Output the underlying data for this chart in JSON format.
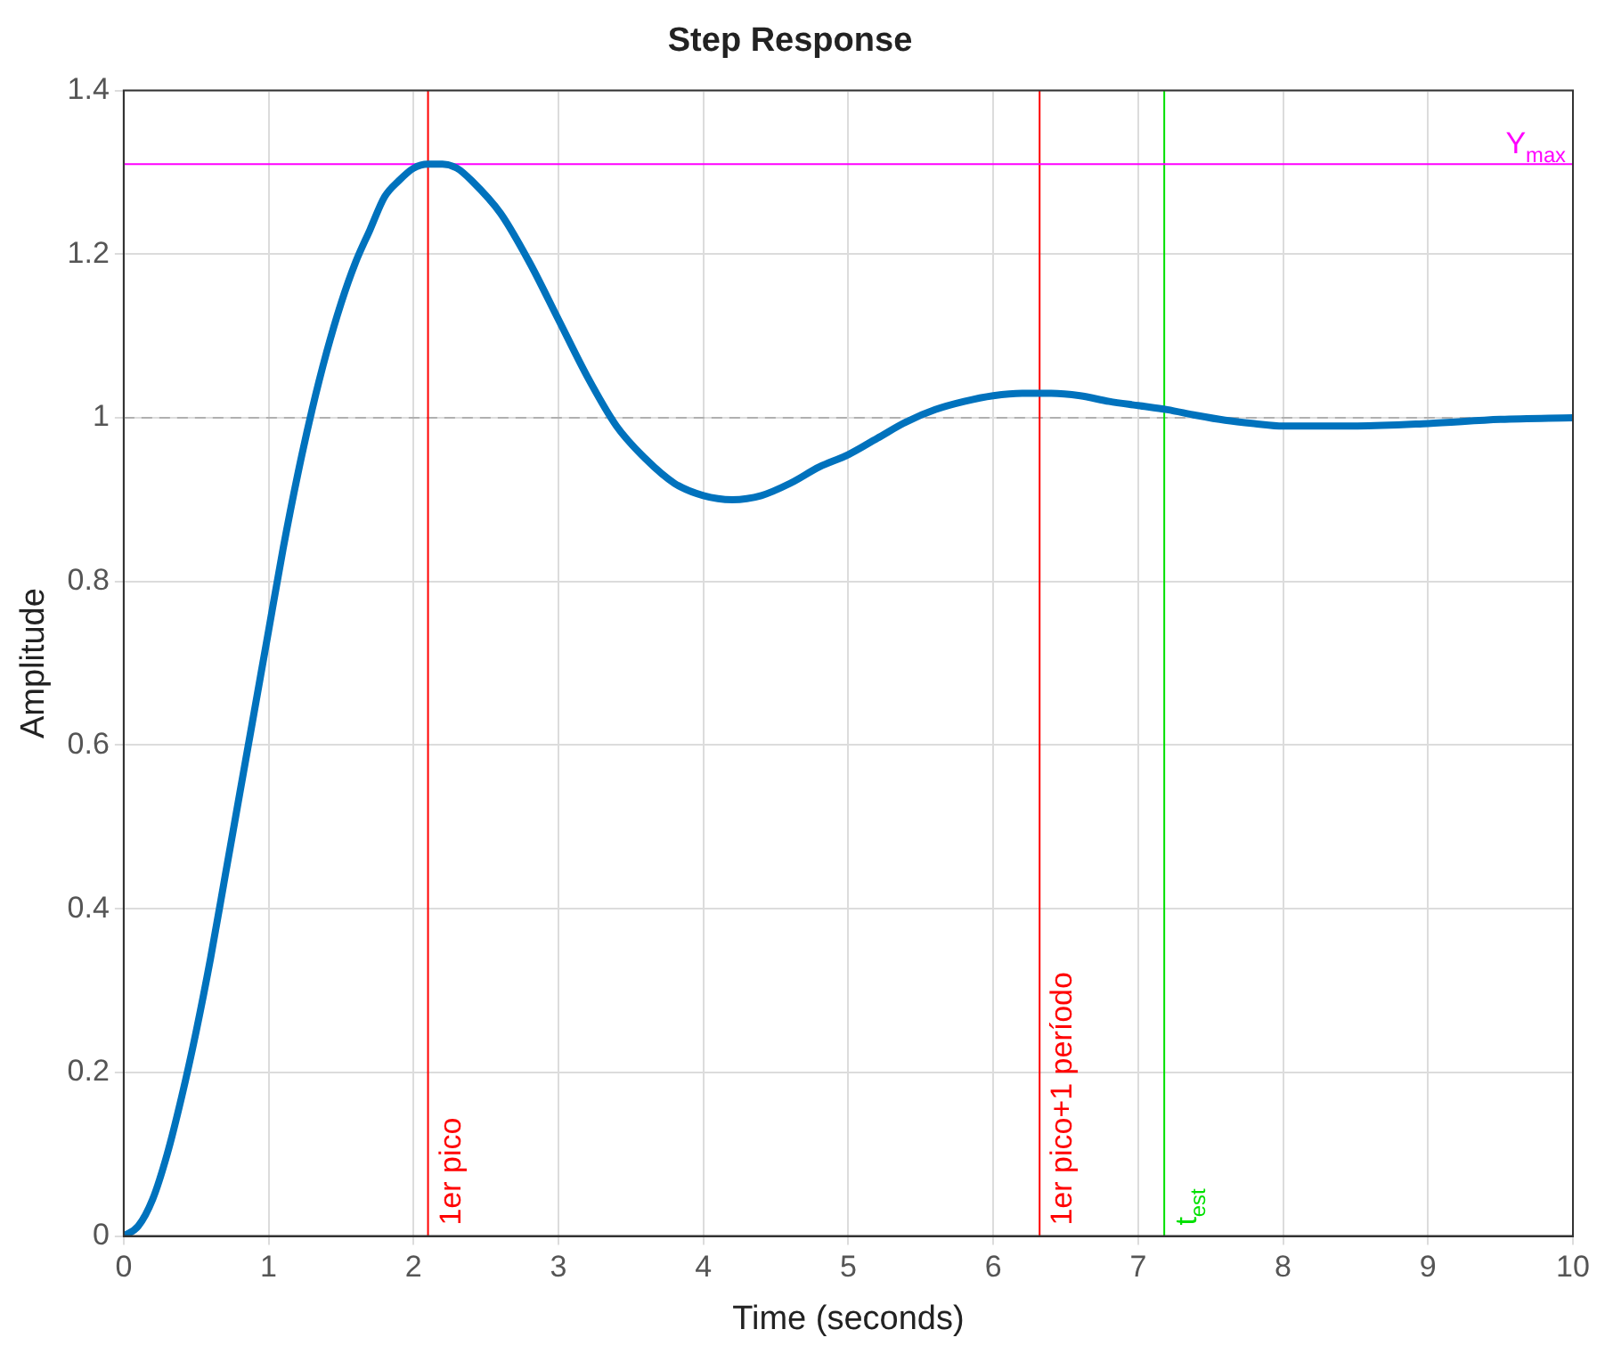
{
  "chart_data": {
    "type": "line",
    "title": "Step Response",
    "xlabel": "Time (seconds)",
    "ylabel": "Amplitude",
    "x": [
      0,
      0.1,
      0.2,
      0.3,
      0.4,
      0.5,
      0.6,
      0.7,
      0.8,
      0.9,
      1.0,
      1.1,
      1.2,
      1.3,
      1.4,
      1.5,
      1.6,
      1.7,
      1.8,
      1.9,
      2.0,
      2.1,
      2.2,
      2.3,
      2.4,
      2.6,
      2.8,
      3.0,
      3.2,
      3.4,
      3.6,
      3.8,
      4.0,
      4.2,
      4.4,
      4.6,
      4.8,
      5.0,
      5.2,
      5.4,
      5.6,
      5.8,
      6.0,
      6.2,
      6.4,
      6.6,
      6.8,
      7.0,
      7.2,
      7.4,
      7.6,
      7.8,
      8.0,
      8.5,
      9.0,
      9.5,
      10
    ],
    "series": [
      {
        "color": "#0072bd",
        "values": [
          0,
          0.012,
          0.045,
          0.1,
          0.17,
          0.25,
          0.34,
          0.44,
          0.54,
          0.64,
          0.74,
          0.84,
          0.93,
          1.01,
          1.08,
          1.14,
          1.19,
          1.23,
          1.27,
          1.29,
          1.305,
          1.31,
          1.31,
          1.305,
          1.29,
          1.25,
          1.19,
          1.12,
          1.05,
          0.99,
          0.95,
          0.92,
          0.905,
          0.9,
          0.905,
          0.92,
          0.94,
          0.955,
          0.975,
          0.995,
          1.01,
          1.02,
          1.027,
          1.03,
          1.03,
          1.027,
          1.02,
          1.015,
          1.01,
          1.003,
          0.997,
          0.993,
          0.99,
          0.99,
          0.993,
          0.998,
          1.0
        ]
      }
    ],
    "xlim": [
      0,
      10
    ],
    "xticks": [
      0,
      1,
      2,
      3,
      4,
      5,
      6,
      7,
      8,
      9,
      10
    ],
    "ylim": [
      0,
      1.4
    ],
    "yticks": [
      0,
      0.2,
      0.4,
      0.6,
      0.8,
      1,
      1.2,
      1.4
    ],
    "grid": true,
    "legend": false,
    "marker": "none",
    "line_style": "solid",
    "ref_lines": [
      {
        "axis": "y",
        "value": 1,
        "color": "#b0b0b0",
        "line_style": "dashed"
      },
      {
        "axis": "x",
        "value": 2.1,
        "label": "1er pico",
        "color": "#ff0000",
        "line_style": "solid"
      },
      {
        "axis": "x",
        "value": 6.32,
        "label": "1er pico+1 período",
        "color": "#ff0000",
        "line_style": "solid"
      },
      {
        "axis": "x",
        "value": 7.18,
        "label": "t$_{est}$",
        "color": "#00e000",
        "line_style": "solid"
      },
      {
        "axis": "y",
        "value": 1.31,
        "label": "Y$_{max}$",
        "color": "#ff00ff",
        "line_style": "solid"
      }
    ]
  }
}
